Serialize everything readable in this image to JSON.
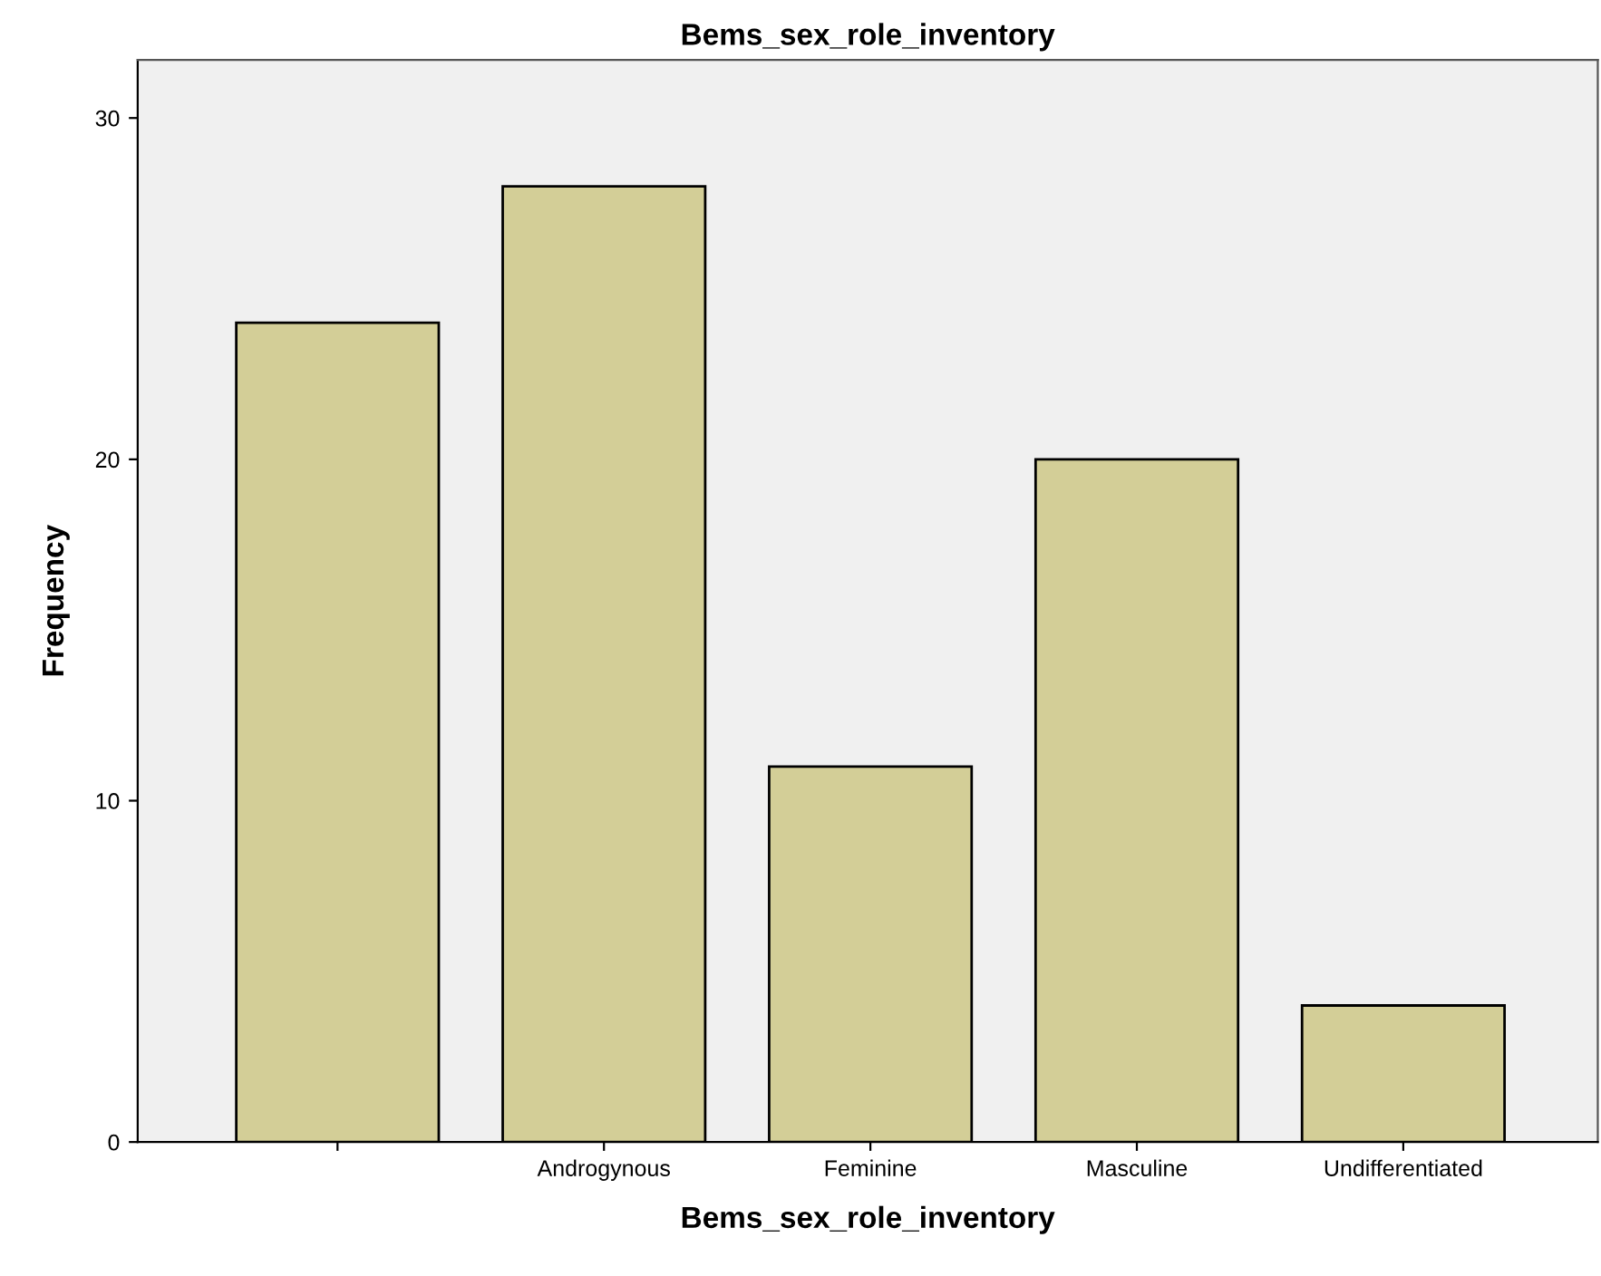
{
  "chart_data": {
    "type": "bar",
    "title": "Bems_sex_role_inventory",
    "xlabel": "Bems_sex_role_inventory",
    "ylabel": "Frequency",
    "categories": [
      null,
      "Androgynous",
      "Feminine",
      "Masculine",
      "Undifferentiated"
    ],
    "values": [
      24,
      28,
      11,
      20,
      4
    ],
    "color": "#d3ce97",
    "ylim": [
      0,
      31.7
    ],
    "yticks": [
      0,
      10,
      20,
      30
    ],
    "grid": false,
    "legend": false
  }
}
